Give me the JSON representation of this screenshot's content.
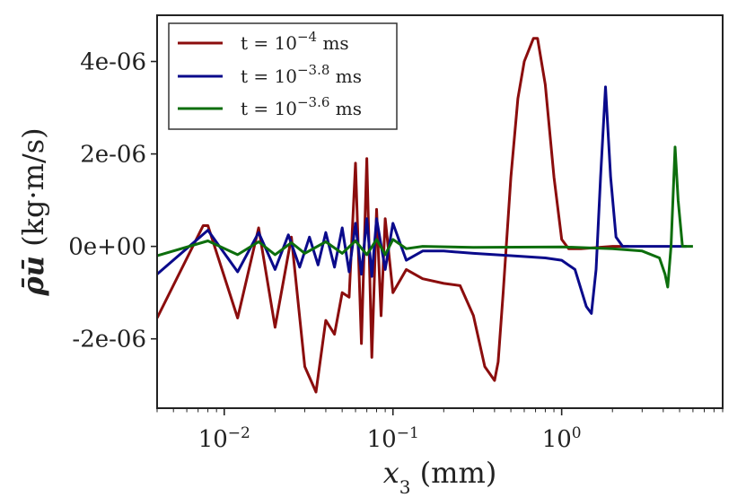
{
  "chart_data": {
    "type": "line",
    "title": "",
    "xlabel": {
      "var": "x",
      "sub": "3",
      "unit": "(mm)"
    },
    "ylabel": {
      "sym": "ρ̄ū",
      "unit": "(kg·m/s)"
    },
    "xscale": "log",
    "xlim": [
      0.004,
      9.0
    ],
    "ylim": [
      -3.5e-06,
      5e-06
    ],
    "xticks": [
      {
        "value": 0.01,
        "base": "10",
        "exp": "−2"
      },
      {
        "value": 0.1,
        "base": "10",
        "exp": "−1"
      },
      {
        "value": 1.0,
        "base": "10",
        "exp": "0"
      }
    ],
    "yticks": [
      {
        "value": 4e-06,
        "label": "4e-06"
      },
      {
        "value": 2e-06,
        "label": "2e-06"
      },
      {
        "value": 0,
        "label": "0e+00"
      },
      {
        "value": -2e-06,
        "label": "-2e-06"
      }
    ],
    "legend_position": "top-left",
    "series": [
      {
        "name": "t = 10^-4 ms",
        "legend": {
          "prefix": "t = 10",
          "exp": "−4",
          "suffix": " ms"
        },
        "color": "#8b0d0d",
        "points": [
          [
            0.004,
            -1.55e-06
          ],
          [
            0.0075,
            4.5e-07
          ],
          [
            0.008,
            4.5e-07
          ],
          [
            0.012,
            -1.55e-06
          ],
          [
            0.016,
            4e-07
          ],
          [
            0.02,
            -1.75e-06
          ],
          [
            0.025,
            2e-07
          ],
          [
            0.03,
            -2.6e-06
          ],
          [
            0.035,
            -3.15e-06
          ],
          [
            0.04,
            -1.6e-06
          ],
          [
            0.045,
            -1.9e-06
          ],
          [
            0.05,
            -1e-06
          ],
          [
            0.055,
            -1.1e-06
          ],
          [
            0.06,
            1.8e-06
          ],
          [
            0.065,
            -2.1e-06
          ],
          [
            0.07,
            1.9e-06
          ],
          [
            0.075,
            -2.4e-06
          ],
          [
            0.08,
            8e-07
          ],
          [
            0.085,
            -1.5e-06
          ],
          [
            0.09,
            6e-07
          ],
          [
            0.1,
            -1e-06
          ],
          [
            0.12,
            -5e-07
          ],
          [
            0.15,
            -7e-07
          ],
          [
            0.2,
            -8e-07
          ],
          [
            0.25,
            -8.5e-07
          ],
          [
            0.3,
            -1.5e-06
          ],
          [
            0.35,
            -2.6e-06
          ],
          [
            0.4,
            -2.9e-06
          ],
          [
            0.42,
            -2.5e-06
          ],
          [
            0.45,
            -1e-06
          ],
          [
            0.5,
            1.5e-06
          ],
          [
            0.55,
            3.2e-06
          ],
          [
            0.6,
            4e-06
          ],
          [
            0.68,
            4.5e-06
          ],
          [
            0.72,
            4.5e-06
          ],
          [
            0.8,
            3.5e-06
          ],
          [
            0.9,
            1.5e-06
          ],
          [
            1.0,
            1.5e-07
          ],
          [
            1.1,
            -5e-08
          ],
          [
            1.3,
            -5e-08
          ],
          [
            2.0,
            0
          ],
          [
            2.5,
            0
          ]
        ]
      },
      {
        "name": "t = 10^-3.8 ms",
        "legend": {
          "prefix": "t = 10",
          "exp": "−3.8",
          "suffix": " ms"
        },
        "color": "#0a0a8b",
        "points": [
          [
            0.004,
            -6e-07
          ],
          [
            0.008,
            3.5e-07
          ],
          [
            0.012,
            -5.5e-07
          ],
          [
            0.016,
            3e-07
          ],
          [
            0.02,
            -5e-07
          ],
          [
            0.024,
            2.5e-07
          ],
          [
            0.028,
            -4.5e-07
          ],
          [
            0.032,
            2e-07
          ],
          [
            0.036,
            -4e-07
          ],
          [
            0.04,
            3e-07
          ],
          [
            0.045,
            -4.5e-07
          ],
          [
            0.05,
            4e-07
          ],
          [
            0.055,
            -5.5e-07
          ],
          [
            0.06,
            5e-07
          ],
          [
            0.065,
            -6e-07
          ],
          [
            0.07,
            6e-07
          ],
          [
            0.075,
            -6.5e-07
          ],
          [
            0.08,
            6e-07
          ],
          [
            0.09,
            -5e-07
          ],
          [
            0.1,
            5e-07
          ],
          [
            0.12,
            -3e-07
          ],
          [
            0.15,
            -1e-07
          ],
          [
            0.2,
            -1e-07
          ],
          [
            0.3,
            -1.5e-07
          ],
          [
            0.5,
            -2e-07
          ],
          [
            0.8,
            -2.5e-07
          ],
          [
            1.0,
            -3e-07
          ],
          [
            1.2,
            -5e-07
          ],
          [
            1.4,
            -1.3e-06
          ],
          [
            1.5,
            -1.45e-06
          ],
          [
            1.6,
            -5e-07
          ],
          [
            1.7,
            1.5e-06
          ],
          [
            1.82,
            3.45e-06
          ],
          [
            1.95,
            1.5e-06
          ],
          [
            2.1,
            2e-07
          ],
          [
            2.3,
            0
          ],
          [
            3.0,
            0
          ],
          [
            5.5,
            0
          ]
        ]
      },
      {
        "name": "t = 10^-3.6 ms",
        "legend": {
          "prefix": "t = 10",
          "exp": "−3.6",
          "suffix": " ms"
        },
        "color": "#0d6e0d",
        "points": [
          [
            0.004,
            -2e-07
          ],
          [
            0.008,
            1.2e-07
          ],
          [
            0.012,
            -1.8e-07
          ],
          [
            0.016,
            1e-07
          ],
          [
            0.02,
            -1.8e-07
          ],
          [
            0.025,
            8e-08
          ],
          [
            0.03,
            -1.5e-07
          ],
          [
            0.04,
            1e-07
          ],
          [
            0.05,
            -1.5e-07
          ],
          [
            0.06,
            1.2e-07
          ],
          [
            0.07,
            -1.8e-07
          ],
          [
            0.08,
            1.5e-07
          ],
          [
            0.09,
            -1.8e-07
          ],
          [
            0.1,
            1.5e-07
          ],
          [
            0.12,
            -5e-08
          ],
          [
            0.15,
            0
          ],
          [
            0.3,
            -2e-08
          ],
          [
            1.0,
            -1e-08
          ],
          [
            2.0,
            -5e-08
          ],
          [
            3.0,
            -1e-07
          ],
          [
            3.8,
            -2.5e-07
          ],
          [
            4.1,
            -6e-07
          ],
          [
            4.25,
            -8.8e-07
          ],
          [
            4.45,
            0
          ],
          [
            4.7,
            2.15e-06
          ],
          [
            4.9,
            1e-06
          ],
          [
            5.2,
            0
          ],
          [
            6.0,
            0
          ]
        ]
      }
    ]
  }
}
